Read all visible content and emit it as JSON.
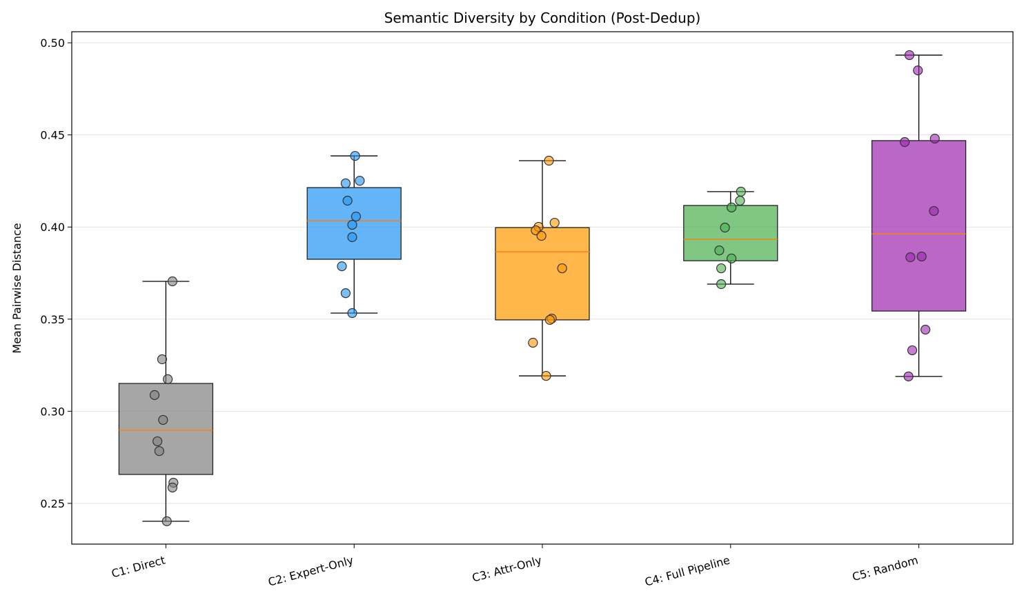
{
  "chart_data": {
    "type": "box",
    "title": "Semantic Diversity by Condition (Post-Dedup)",
    "xlabel": "",
    "ylabel": "Mean Pairwise Distance",
    "ylim": [
      0.2279,
      0.506
    ],
    "yticks": [
      0.25,
      0.3,
      0.35,
      0.4,
      0.45,
      0.5
    ],
    "ytick_labels": [
      "0.25",
      "0.30",
      "0.35",
      "0.40",
      "0.45",
      "0.50"
    ],
    "grid": "y",
    "median_color": "#ff7f0e",
    "categories": [
      "C1: Direct",
      "C2: Expert-Only",
      "C3: Attr-Only",
      "C4: Full Pipeline",
      "C5: Random"
    ],
    "series": [
      {
        "name": "C1: Direct",
        "color": "#808080",
        "whisker_low": 0.2403,
        "q1": 0.2657,
        "median": 0.2897,
        "q3": 0.3151,
        "whisker_high": 0.3705,
        "points": [
          0.3705,
          0.3282,
          0.3174,
          0.3088,
          0.2953,
          0.2837,
          0.2784,
          0.2612,
          0.2586,
          0.2403
        ],
        "jitter": [
          0.07,
          -0.04,
          0.02,
          -0.12,
          -0.03,
          -0.09,
          -0.07,
          0.08,
          0.07,
          0.01
        ]
      },
      {
        "name": "C2: Expert-Only",
        "color": "#2196f3",
        "whisker_low": 0.3533,
        "q1": 0.3825,
        "median": 0.4034,
        "q3": 0.4214,
        "whisker_high": 0.4386,
        "points": [
          0.4386,
          0.4251,
          0.4237,
          0.4143,
          0.4057,
          0.4012,
          0.3945,
          0.3787,
          0.3641,
          0.3533
        ],
        "jitter": [
          0.01,
          0.06,
          -0.09,
          -0.07,
          0.02,
          -0.02,
          -0.02,
          -0.13,
          -0.09,
          -0.02
        ]
      },
      {
        "name": "C3: Attr-Only",
        "color": "#ff9800",
        "whisker_low": 0.3192,
        "q1": 0.3496,
        "median": 0.3866,
        "q3": 0.3997,
        "whisker_high": 0.436,
        "points": [
          0.436,
          0.4023,
          0.4001,
          0.3982,
          0.3952,
          0.3776,
          0.3503,
          0.3496,
          0.3372,
          0.3192
        ],
        "jitter": [
          0.07,
          0.13,
          -0.04,
          -0.07,
          -0.01,
          0.21,
          0.1,
          0.08,
          -0.1,
          0.04
        ]
      },
      {
        "name": "C4: Full Pipeline",
        "color": "#4caf50",
        "whisker_low": 0.369,
        "q1": 0.3817,
        "median": 0.3933,
        "q3": 0.4117,
        "whisker_high": 0.4192,
        "points": [
          0.4192,
          0.4143,
          0.4106,
          0.3997,
          0.3873,
          0.3829,
          0.3776,
          0.369
        ],
        "jitter": [
          0.11,
          0.1,
          0.01,
          -0.06,
          -0.12,
          0.01,
          -0.1,
          -0.1
        ]
      },
      {
        "name": "C5: Random",
        "color": "#9c27b0",
        "whisker_low": 0.3189,
        "q1": 0.3544,
        "median": 0.3963,
        "q3": 0.4469,
        "whisker_high": 0.4933,
        "points": [
          0.4933,
          0.485,
          0.448,
          0.4461,
          0.4087,
          0.3836,
          0.384,
          0.3443,
          0.3331,
          0.3189
        ],
        "jitter": [
          -0.1,
          -0.01,
          0.17,
          -0.15,
          0.16,
          -0.09,
          0.03,
          0.07,
          -0.07,
          -0.11
        ]
      }
    ]
  }
}
